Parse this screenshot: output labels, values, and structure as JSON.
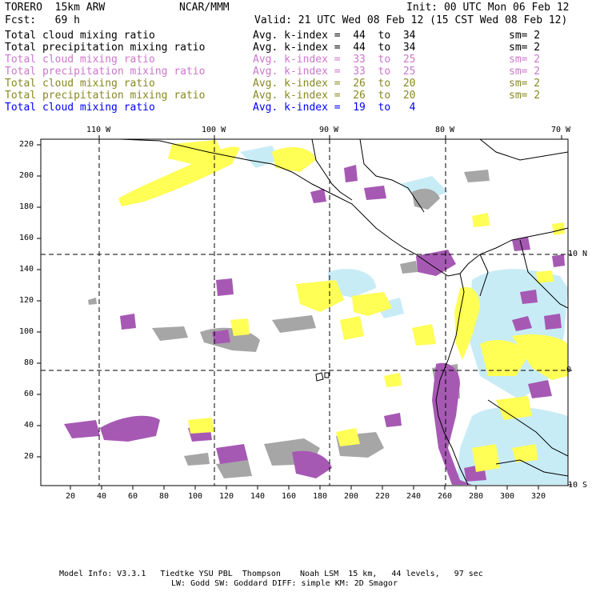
{
  "header": {
    "model": "TORERO  15km ARW",
    "org": "NCAR/MMM",
    "init": "Init: 00 UTC Mon 06 Feb 12",
    "fcst": "Fcst:   69 h",
    "valid": "Valid: 21 UTC Wed 08 Feb 12 (15 CST Wed 08 Feb 12)"
  },
  "legend": [
    {
      "field": "Total cloud mixing ratio",
      "stat": "Avg. k-index =  44  to  34",
      "sm": "sm= 2",
      "color": "#000000"
    },
    {
      "field": "Total precipitation mixing ratio",
      "stat": "Avg. k-index =  44  to  34",
      "sm": "sm= 2",
      "color": "#000000"
    },
    {
      "field": "Total cloud mixing ratio",
      "stat": "Avg. k-index =  33  to  25",
      "sm": "sm= 2",
      "color": "#cc77cc"
    },
    {
      "field": "Total precipitation mixing ratio",
      "stat": "Avg. k-index =  33  to  25",
      "sm": "sm= 2",
      "color": "#cc77cc"
    },
    {
      "field": "Total cloud mixing ratio",
      "stat": "Avg. k-index =  26  to  20",
      "sm": "sm= 2",
      "color": "#888822"
    },
    {
      "field": "Total precipitation mixing ratio",
      "stat": "Avg. k-index =  26  to  20",
      "sm": "sm= 2",
      "color": "#888822"
    },
    {
      "field": "Total cloud mixing ratio",
      "stat": "Avg. k-index =  19  to   4",
      "sm": "",
      "color": "#0000ff"
    }
  ],
  "axes": {
    "top_lon": [
      "110 W",
      "100 W",
      "90 W",
      "80 W",
      "70 W"
    ],
    "right_lat": [
      "10 N",
      "0",
      "10 S"
    ],
    "left_ticks": [
      "220",
      "200",
      "180",
      "160",
      "140",
      "120",
      "100",
      "80",
      "60",
      "40",
      "20"
    ],
    "bottom_ticks": [
      "20",
      "40",
      "60",
      "80",
      "100",
      "120",
      "140",
      "160",
      "180",
      "200",
      "220",
      "240",
      "260",
      "280",
      "300",
      "320"
    ]
  },
  "colors": {
    "gray": "#a6a6a6",
    "purple": "#a659b3",
    "yellow": "#ffff55",
    "lightblue": "#c8ecf6"
  },
  "footer": {
    "line1": "Model Info: V3.3.1   Tiedtke YSU PBL  Thompson    Noah LSM  15 km,   44 levels,   97 sec",
    "line2": "LW: Godd SW: Goddard DIFF: simple KM: 2D Smagor"
  }
}
